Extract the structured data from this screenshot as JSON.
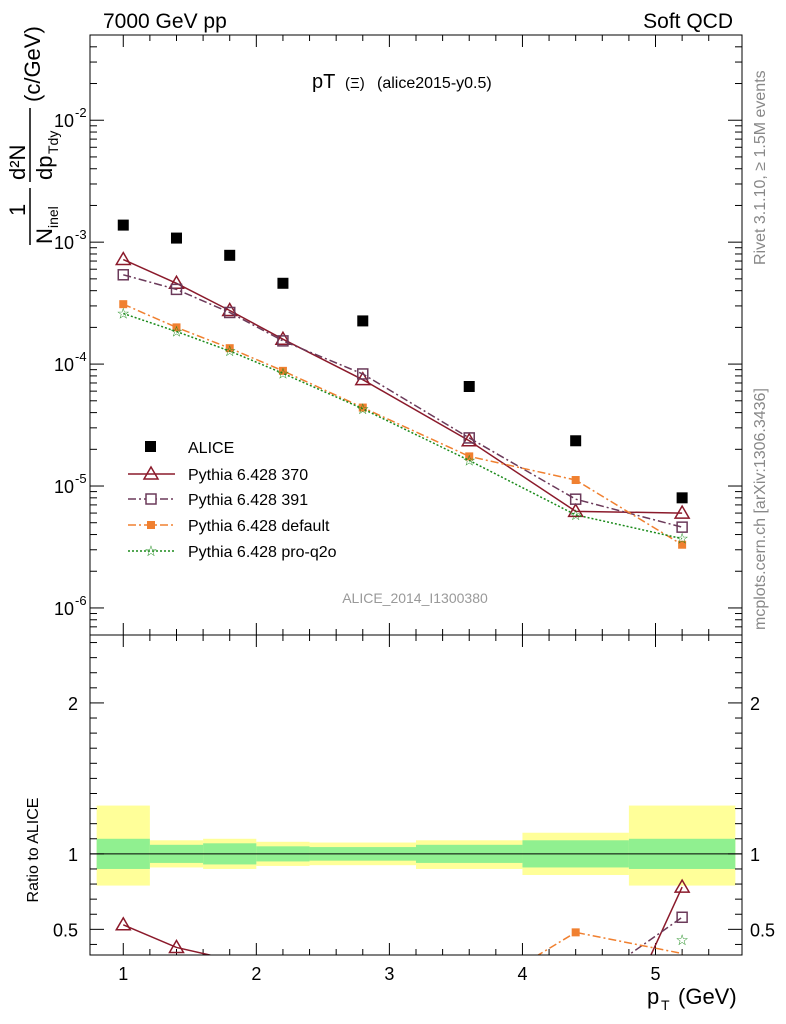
{
  "header": {
    "left": "7000 GeV pp",
    "right": "Soft QCD"
  },
  "side_text": {
    "rivet": "Rivet 3.1.10, ≥ 1.5M events",
    "mcplots": "mcplots.cern.ch [arXiv:1306.3436]"
  },
  "plot_title": {
    "main": "pT",
    "particle": "(Ξ)",
    "tag": "(alice2015-y0.5)"
  },
  "ylabel": {
    "one": "1",
    "frac_num_left": "N",
    "frac_num_sub": "inel",
    "d2n": "d²N",
    "dp": "dp",
    "dp_sub": "Tdy",
    "unit": "(c/GeV)"
  },
  "xlabel": {
    "main": "p",
    "sub": "T",
    "unit": "(GeV)"
  },
  "analysis_id": "ALICE_2014_I1300380",
  "ratio_label": "Ratio to ALICE",
  "colors": {
    "data": "#000000",
    "p370": "#8b1a2b",
    "p391": "#6b3a5a",
    "pdefault": "#f08030",
    "pq2o": "#1a8a1a",
    "band_inner": "#90f090",
    "band_outer": "#ffff99"
  },
  "chart_data": [
    {
      "type": "scatter",
      "scale": "log",
      "x_range": [
        0.75,
        5.65
      ],
      "ylim": [
        6e-07,
        0.05
      ],
      "y_ticks": [
        "10^-6",
        "10^-5",
        "10^-4",
        "10^-3",
        "10^-2"
      ],
      "y_tick_values": [
        1e-06,
        1e-05,
        0.0001,
        0.001,
        0.01
      ],
      "x_ticks": [
        1,
        2,
        3,
        4,
        5
      ],
      "series": [
        {
          "name": "ALICE",
          "key": "data",
          "style": "square-marker",
          "x": [
            1.0,
            1.4,
            1.8,
            2.2,
            2.8,
            3.6,
            4.4,
            5.2
          ],
          "y": [
            0.00138,
            0.00108,
            0.00078,
            0.00046,
            0.000226,
            6.55e-05,
            2.35e-05,
            8e-06
          ]
        },
        {
          "name": "Pythia 6.428 370",
          "key": "p370",
          "style": "open-triangle-solid",
          "x": [
            1.0,
            1.4,
            1.8,
            2.2,
            2.8,
            3.6,
            4.4,
            5.2
          ],
          "y": [
            0.00072,
            0.00046,
            0.000275,
            0.00016,
            7.45e-05,
            2.35e-05,
            6.2e-06,
            6e-06
          ]
        },
        {
          "name": "Pythia 6.428 391",
          "key": "p391",
          "style": "open-square-dashdot",
          "x": [
            1.0,
            1.4,
            1.8,
            2.2,
            2.8,
            3.6,
            4.4,
            5.2
          ],
          "y": [
            0.00054,
            0.00041,
            0.000265,
            0.000155,
            8.3e-05,
            2.48e-05,
            7.8e-06,
            4.6e-06
          ]
        },
        {
          "name": "Pythia 6.428 default",
          "key": "pdefault",
          "style": "filled-square-dashdot",
          "x": [
            1.0,
            1.4,
            1.8,
            2.2,
            2.8,
            3.6,
            4.4,
            5.2
          ],
          "y": [
            0.00031,
            0.0002,
            0.000135,
            8.8e-05,
            4.4e-05,
            1.75e-05,
            1.12e-05,
            3.3e-06
          ]
        },
        {
          "name": "Pythia 6.428 pro-q2o",
          "key": "pq2o",
          "style": "star-dotted",
          "x": [
            1.0,
            1.4,
            1.8,
            2.2,
            2.8,
            3.6,
            4.4,
            5.2
          ],
          "y": [
            0.00026,
            0.000185,
            0.000128,
            8.4e-05,
            4.3e-05,
            1.62e-05,
            5.8e-06,
            3.7e-06
          ]
        }
      ]
    },
    {
      "type": "line",
      "ylabel": "Ratio to ALICE",
      "ylim": [
        0.33,
        2.45
      ],
      "y_ticks": [
        0.5,
        1,
        2
      ],
      "x_ticks": [
        1,
        2,
        3,
        4,
        5
      ],
      "bins": [
        {
          "lo": 0.8,
          "hi": 1.2,
          "inner": [
            0.9,
            1.1
          ],
          "outer": [
            0.79,
            1.32
          ]
        },
        {
          "lo": 1.2,
          "hi": 1.6,
          "inner": [
            0.94,
            1.06
          ],
          "outer": [
            0.91,
            1.09
          ]
        },
        {
          "lo": 1.6,
          "hi": 2.0,
          "inner": [
            0.93,
            1.07
          ],
          "outer": [
            0.9,
            1.1
          ]
        },
        {
          "lo": 2.0,
          "hi": 2.4,
          "inner": [
            0.95,
            1.05
          ],
          "outer": [
            0.92,
            1.08
          ]
        },
        {
          "lo": 2.4,
          "hi": 3.2,
          "inner": [
            0.955,
            1.045
          ],
          "outer": [
            0.925,
            1.075
          ]
        },
        {
          "lo": 3.2,
          "hi": 4.0,
          "inner": [
            0.94,
            1.06
          ],
          "outer": [
            0.9,
            1.09
          ]
        },
        {
          "lo": 4.0,
          "hi": 4.8,
          "inner": [
            0.91,
            1.09
          ],
          "outer": [
            0.86,
            1.14
          ]
        },
        {
          "lo": 4.8,
          "hi": 5.6,
          "inner": [
            0.9,
            1.1
          ],
          "outer": [
            0.79,
            1.32
          ]
        }
      ],
      "series": [
        {
          "name": "Pythia 6.428 370",
          "key": "p370",
          "x": [
            1.0,
            1.4,
            1.8,
            4.95,
            5.2
          ],
          "y": [
            0.53,
            0.38,
            0.3,
            0.3,
            0.78
          ]
        },
        {
          "name": "Pythia 6.428 391",
          "key": "p391",
          "x": [
            4.75,
            5.2
          ],
          "y": [
            0.3,
            0.58
          ]
        },
        {
          "name": "Pythia 6.428 default",
          "key": "pdefault",
          "x": [
            4.1,
            4.4,
            5.2
          ],
          "y": [
            0.32,
            0.48,
            0.34
          ]
        },
        {
          "name": "Pythia 6.428 pro-q2o",
          "key": "pq2o",
          "x": [
            5.2
          ],
          "y": [
            0.43
          ]
        }
      ]
    }
  ]
}
